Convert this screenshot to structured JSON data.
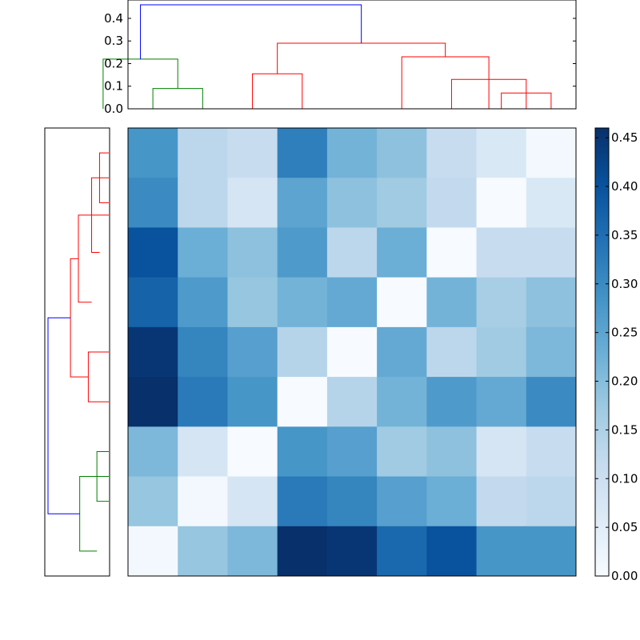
{
  "chart_data": {
    "type": "heatmap",
    "title": "",
    "colormap": "Blues",
    "matrix": [
      [
        0.28,
        0.13,
        0.11,
        0.32,
        0.22,
        0.19,
        0.11,
        0.07,
        0.01
      ],
      [
        0.3,
        0.13,
        0.08,
        0.25,
        0.19,
        0.17,
        0.12,
        0.0,
        0.07
      ],
      [
        0.4,
        0.23,
        0.19,
        0.27,
        0.13,
        0.23,
        0.0,
        0.11,
        0.11
      ],
      [
        0.37,
        0.27,
        0.18,
        0.22,
        0.24,
        0.0,
        0.22,
        0.16,
        0.19
      ],
      [
        0.45,
        0.31,
        0.26,
        0.14,
        0.0,
        0.24,
        0.13,
        0.17,
        0.21
      ],
      [
        0.46,
        0.33,
        0.28,
        0.0,
        0.14,
        0.22,
        0.27,
        0.24,
        0.3
      ],
      [
        0.21,
        0.08,
        0.0,
        0.28,
        0.26,
        0.17,
        0.19,
        0.08,
        0.11
      ],
      [
        0.18,
        0.01,
        0.08,
        0.33,
        0.31,
        0.26,
        0.23,
        0.12,
        0.13
      ],
      [
        0.01,
        0.18,
        0.21,
        0.46,
        0.45,
        0.36,
        0.4,
        0.28,
        0.28
      ]
    ],
    "colorbar": {
      "ylim": [
        0,
        0.46
      ],
      "ticks": [
        "0.00",
        "0.05",
        "0.10",
        "0.15",
        "0.20",
        "0.25",
        "0.30",
        "0.35",
        "0.40",
        "0.45"
      ]
    },
    "top_dendrogram": {
      "ylim": [
        0,
        0.46
      ],
      "ticks": [
        "0.0",
        "0.1",
        "0.2",
        "0.3",
        "0.4"
      ],
      "links": [
        {
          "x": [
            0,
            1
          ],
          "y": [
            0.0,
            0.09
          ],
          "color": "#008000"
        },
        {
          "x": [
            -1,
            0.5
          ],
          "y": [
            0.0,
            0.22
          ],
          "color": "#008000"
        },
        {
          "x": [
            2,
            3
          ],
          "y": [
            0.0,
            0.155
          ],
          "color": "#ff0000"
        },
        {
          "x": [
            7,
            8
          ],
          "y": [
            0.0,
            0.07
          ],
          "color": "#ff0000"
        },
        {
          "x": [
            6,
            7.5
          ],
          "y": [
            0.0,
            0.13
          ],
          "color": "#ff0000"
        },
        {
          "x": [
            5,
            6.75
          ],
          "y": [
            0.0,
            0.23
          ],
          "color": "#ff0000"
        },
        {
          "x": [
            2.5,
            5.875
          ],
          "y": [
            0.155,
            0.29
          ],
          "color": "#ff0000"
        },
        {
          "x": [
            -0.25,
            4.1875
          ],
          "y": [
            0.22,
            0.46
          ],
          "color": "#0000ff"
        }
      ]
    },
    "left_dendrogram": {
      "links": [
        {
          "row": [
            0,
            1
          ],
          "depth": [
            0.0,
            0.07
          ],
          "color": "#ff0000"
        },
        {
          "row": [
            0.5,
            2
          ],
          "depth": [
            0.0,
            0.13
          ],
          "color": "#ff0000"
        },
        {
          "row": [
            1.25,
            3
          ],
          "depth": [
            0.0,
            0.23
          ],
          "color": "#ff0000"
        },
        {
          "row": [
            4,
            5
          ],
          "depth": [
            0.0,
            0.155
          ],
          "color": "#ff0000"
        },
        {
          "row": [
            2.125,
            4.5
          ],
          "depth": [
            0.23,
            0.29
          ],
          "color": "#ff0000"
        },
        {
          "row": [
            6,
            7
          ],
          "depth": [
            0.0,
            0.09
          ],
          "color": "#008000"
        },
        {
          "row": [
            6.5,
            8
          ],
          "depth": [
            0.0,
            0.22
          ],
          "color": "#008000"
        },
        {
          "row": [
            3.3125,
            7.25
          ],
          "depth": [
            0.29,
            0.46
          ],
          "color": "#0000ff"
        }
      ]
    }
  }
}
